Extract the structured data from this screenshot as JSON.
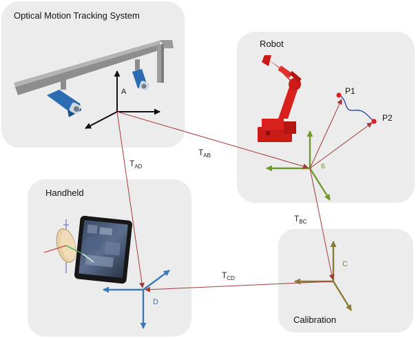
{
  "colors": {
    "panel_fill": "#ececec",
    "transform_arrow": "#a33a3a",
    "robot_red": "#d8201c",
    "robot_frame": "#6d9a2f",
    "handheld_frame": "#3b78b8",
    "calibration_frame": "#8a7a3a",
    "tracking_frame": "#111111",
    "camera_blue": "#2b6cb3",
    "trajectory": "#1e3f9e",
    "point_red": "#e02020"
  },
  "panels": {
    "tracking": {
      "title": "Optical Motion Tracking System"
    },
    "robot": {
      "title": "Robot"
    },
    "handheld": {
      "title": "Handheld"
    },
    "calibration": {
      "title": "Calibration"
    }
  },
  "frames": {
    "A": {
      "label": "A"
    },
    "B": {
      "label": "B"
    },
    "C": {
      "label": "C"
    },
    "D": {
      "label": "D"
    }
  },
  "transforms": {
    "AD": {
      "main": "T",
      "sub": "AD"
    },
    "AB": {
      "main": "T",
      "sub": "AB"
    },
    "BC": {
      "main": "T",
      "sub": "BC"
    },
    "CD": {
      "main": "T",
      "sub": "CD"
    }
  },
  "points": {
    "p1": {
      "label": "P1"
    },
    "p2": {
      "label": "P2"
    }
  }
}
